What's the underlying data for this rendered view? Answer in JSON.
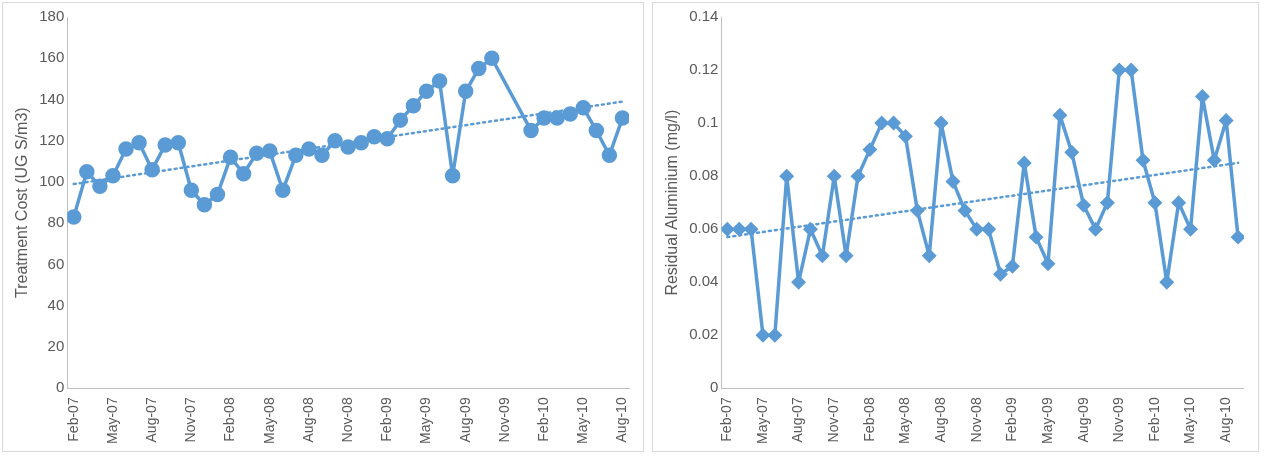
{
  "chart_data": [
    {
      "type": "line",
      "ylabel": "Treatment Cost (UG S/m3)",
      "categories": [
        "Feb-07",
        null,
        null,
        "May-07",
        null,
        null,
        "Aug-07",
        null,
        null,
        "Nov-07",
        null,
        null,
        "Feb-08",
        null,
        null,
        "May-08",
        null,
        null,
        "Aug-08",
        null,
        null,
        "Nov-08",
        null,
        null,
        "Feb-09",
        null,
        null,
        "May-09",
        null,
        null,
        "Aug-09",
        null,
        null,
        "Nov-09",
        null,
        null,
        "Feb-10",
        null,
        null,
        "May-10",
        null,
        null,
        "Aug-10"
      ],
      "series": [
        {
          "color": "#5b9bd5",
          "marker": "circle",
          "values": [
            83,
            105,
            98,
            103,
            116,
            119,
            106,
            118,
            119,
            96,
            89,
            94,
            112,
            104,
            114,
            115,
            96,
            113,
            116,
            113,
            120,
            117,
            119,
            122,
            121,
            130,
            137,
            144,
            149,
            103,
            144,
            155,
            160,
            null,
            null,
            125,
            131,
            131,
            133,
            136,
            125,
            113,
            131
          ]
        },
        {
          "type": "line",
          "color": "#5b9bd5",
          "marker": "none",
          "line_style": "dotted",
          "x": [
            "Feb-07",
            "Aug-10"
          ],
          "values": [
            99,
            139
          ]
        }
      ],
      "ylim": [
        0,
        180
      ],
      "yticks": [
        0,
        20,
        40,
        60,
        80,
        100,
        120,
        140,
        160,
        180
      ],
      "grid": false,
      "legend": false
    },
    {
      "type": "line",
      "ylabel": "Residual Aluminium (mg/l)",
      "categories": [
        "Feb-07",
        null,
        null,
        "May-07",
        null,
        null,
        "Aug-07",
        null,
        null,
        "Nov-07",
        null,
        null,
        "Feb-08",
        null,
        null,
        "May-08",
        null,
        null,
        "Aug-08",
        null,
        null,
        "Nov-08",
        null,
        null,
        "Feb-09",
        null,
        null,
        "May-09",
        null,
        null,
        "Aug-09",
        null,
        null,
        "Nov-09",
        null,
        null,
        "Feb-10",
        null,
        null,
        "May-10",
        null,
        null,
        "Aug-10",
        null
      ],
      "series": [
        {
          "color": "#5b9bd5",
          "marker": "diamond",
          "values": [
            0.06,
            0.06,
            0.06,
            0.02,
            0.02,
            0.08,
            0.04,
            0.06,
            0.05,
            0.08,
            0.05,
            0.08,
            0.09,
            0.1,
            0.1,
            0.095,
            0.067,
            0.05,
            0.1,
            0.078,
            0.067,
            0.06,
            0.06,
            0.043,
            0.046,
            0.085,
            0.057,
            0.047,
            0.103,
            0.089,
            0.069,
            0.06,
            0.07,
            0.12,
            0.12,
            0.086,
            0.07,
            0.04,
            0.07,
            0.06,
            0.11,
            0.086,
            0.101,
            0.057
          ]
        },
        {
          "type": "line",
          "color": "#5b9bd5",
          "marker": "none",
          "line_style": "dotted",
          "values": [
            0.057,
            null,
            null,
            null,
            null,
            null,
            null,
            null,
            null,
            null,
            null,
            null,
            null,
            null,
            null,
            null,
            null,
            null,
            null,
            null,
            null,
            null,
            null,
            null,
            null,
            null,
            null,
            null,
            null,
            null,
            null,
            null,
            null,
            null,
            null,
            null,
            null,
            null,
            null,
            null,
            null,
            null,
            null,
            0.085
          ]
        }
      ],
      "ylim": [
        0,
        0.14
      ],
      "yticks": [
        0,
        0.02,
        0.04,
        0.06,
        0.08,
        0.1,
        0.12,
        0.14
      ],
      "grid": false,
      "legend": false
    }
  ]
}
